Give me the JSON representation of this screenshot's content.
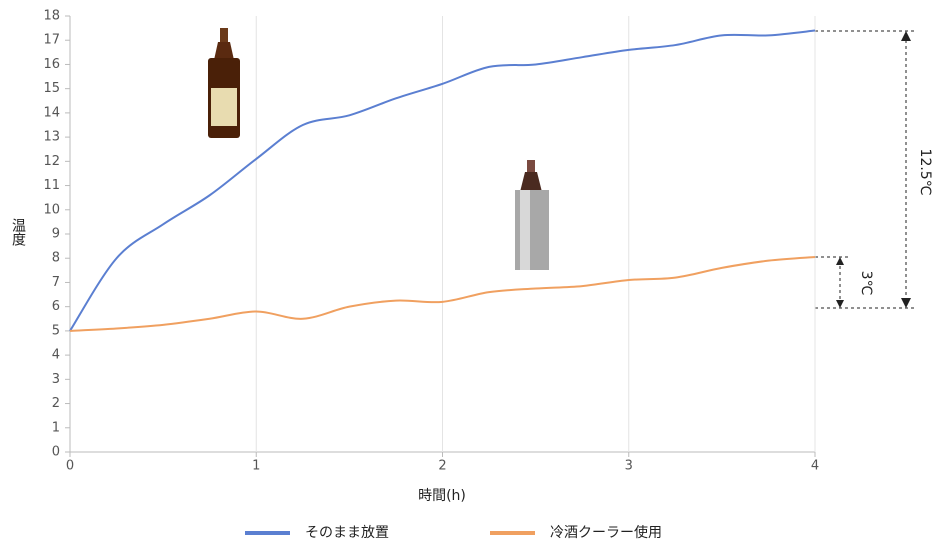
{
  "chart_data": {
    "type": "line",
    "xlabel": "時間(h)",
    "ylabel": "温度",
    "x": [
      0,
      0.25,
      0.5,
      0.75,
      1,
      1.25,
      1.5,
      1.75,
      2,
      2.25,
      2.5,
      2.75,
      3,
      3.25,
      3.5,
      3.75,
      4
    ],
    "series": [
      {
        "name": "そのまま放置",
        "color": "#5b7fd1",
        "values": [
          5,
          8.0,
          9.4,
          10.6,
          12.1,
          13.5,
          13.9,
          14.6,
          15.2,
          15.9,
          16.0,
          16.3,
          16.6,
          16.8,
          17.2,
          17.2,
          17.4
        ]
      },
      {
        "name": "冷酒クーラー使用",
        "color": "#f0a060",
        "values": [
          5,
          5.1,
          5.25,
          5.5,
          5.8,
          5.5,
          6.0,
          6.25,
          6.2,
          6.6,
          6.75,
          6.85,
          7.1,
          7.2,
          7.6,
          7.9,
          8.05
        ]
      }
    ],
    "xlim": [
      0,
      4
    ],
    "xticks": [
      0,
      1,
      2,
      3,
      4
    ],
    "ylim": [
      0,
      18
    ],
    "yticks": [
      0,
      1,
      2,
      3,
      4,
      5,
      6,
      7,
      8,
      9,
      10,
      11,
      12,
      13,
      14,
      15,
      16,
      17,
      18
    ],
    "grid": "x",
    "annotations": [
      "12.5℃",
      "3℃"
    ],
    "legend": "bottom"
  }
}
